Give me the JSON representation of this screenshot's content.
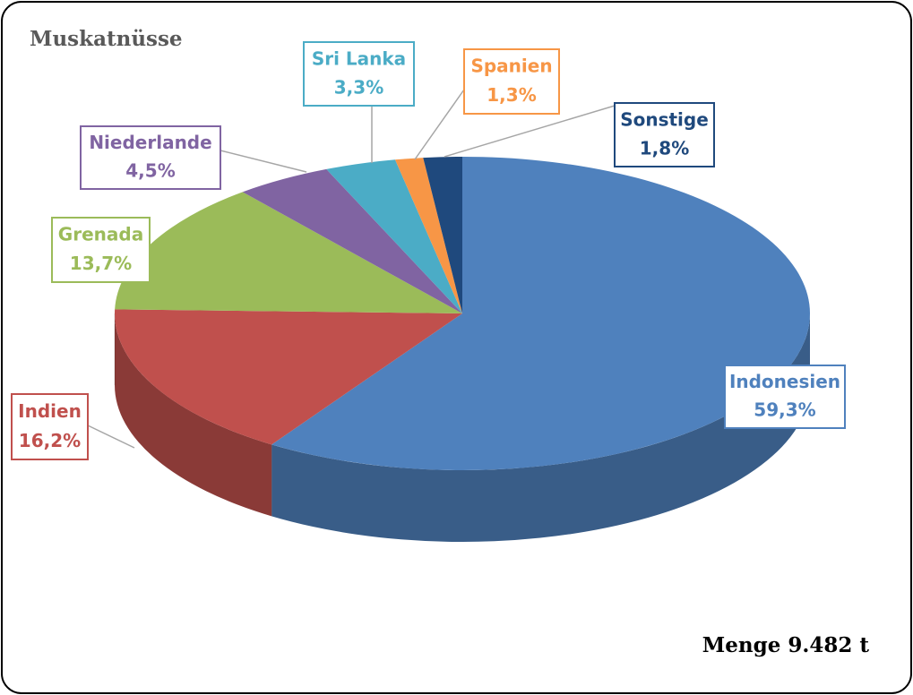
{
  "chart_data": {
    "type": "pie",
    "title": "Muskatnüsse",
    "categories": [
      "Indonesien",
      "Indien",
      "Grenada",
      "Niederlande",
      "Sri Lanka",
      "Spanien",
      "Sonstige"
    ],
    "values": [
      59.3,
      16.2,
      13.7,
      4.5,
      3.3,
      1.3,
      1.8
    ],
    "value_labels": [
      "59,3%",
      "16,2%",
      "13,7%",
      "4,5%",
      "3,3%",
      "1,3%",
      "1,8%"
    ],
    "colors": [
      "#4f81bd",
      "#c0504d",
      "#9bbb59",
      "#8064a2",
      "#4bacc6",
      "#f79646",
      "#1f497d"
    ],
    "annotation": "Menge 9.482 t"
  }
}
